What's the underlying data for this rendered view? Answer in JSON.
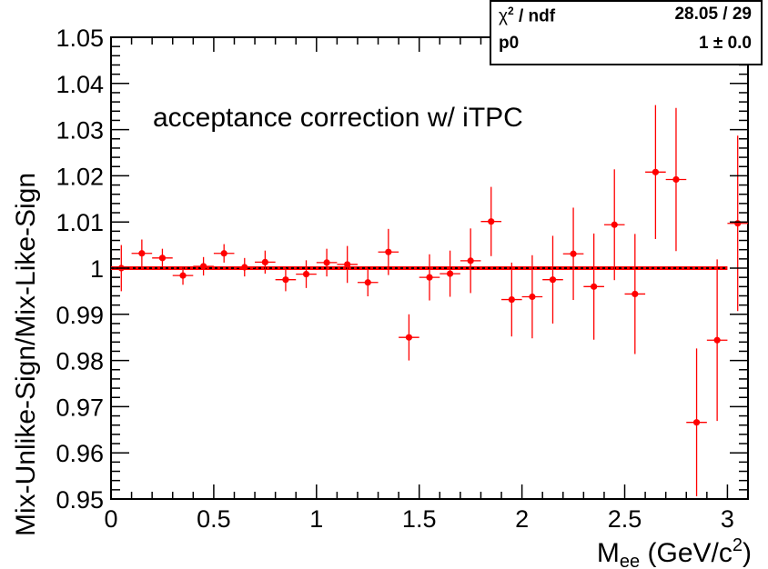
{
  "chart_data": {
    "type": "scatter",
    "title": "",
    "annotation": "acceptance correction w/ iTPC",
    "xlabel_main": "M",
    "xlabel_sub": "ee",
    "xlabel_rest": " (GeV/c",
    "xlabel_sup": "2",
    "xlabel_close": ")",
    "ylabel": "Mix-Unlike-Sign/Mix-Like-Sign",
    "xlim": [
      0,
      3.1
    ],
    "ylim": [
      0.95,
      1.05
    ],
    "x_ticks": [
      "0",
      "0.5",
      "1",
      "1.5",
      "2",
      "2.5",
      "3"
    ],
    "y_ticks": [
      "0.95",
      "0.96",
      "0.97",
      "0.98",
      "0.99",
      "1",
      "1.01",
      "1.02",
      "1.03",
      "1.04",
      "1.05"
    ],
    "grid": false,
    "marker_color": "#ff0000",
    "fit_line": {
      "y": 1.0,
      "x_range": [
        0,
        3
      ],
      "color": "#ff0000",
      "style": "solid"
    },
    "reference_line": {
      "y": 1.0,
      "x_range": [
        0,
        3
      ],
      "color": "#000000",
      "style": "dotted"
    },
    "points": [
      {
        "x": 0.05,
        "y": 1.0,
        "err": 0.005,
        "xerr": 0.05
      },
      {
        "x": 0.15,
        "y": 1.0032,
        "err": 0.003,
        "xerr": 0.05
      },
      {
        "x": 0.25,
        "y": 1.0022,
        "err": 0.002,
        "xerr": 0.05
      },
      {
        "x": 0.35,
        "y": 0.9984,
        "err": 0.002,
        "xerr": 0.05
      },
      {
        "x": 0.45,
        "y": 1.0004,
        "err": 0.002,
        "xerr": 0.05
      },
      {
        "x": 0.55,
        "y": 1.0032,
        "err": 0.002,
        "xerr": 0.05
      },
      {
        "x": 0.65,
        "y": 1.0002,
        "err": 0.002,
        "xerr": 0.05
      },
      {
        "x": 0.75,
        "y": 1.0013,
        "err": 0.0025,
        "xerr": 0.05
      },
      {
        "x": 0.85,
        "y": 0.9975,
        "err": 0.0025,
        "xerr": 0.05
      },
      {
        "x": 0.95,
        "y": 0.9987,
        "err": 0.003,
        "xerr": 0.05
      },
      {
        "x": 1.05,
        "y": 1.0012,
        "err": 0.003,
        "xerr": 0.05
      },
      {
        "x": 1.15,
        "y": 1.0008,
        "err": 0.004,
        "xerr": 0.05
      },
      {
        "x": 1.25,
        "y": 0.9969,
        "err": 0.003,
        "xerr": 0.05
      },
      {
        "x": 1.35,
        "y": 1.0035,
        "err": 0.005,
        "xerr": 0.05
      },
      {
        "x": 1.45,
        "y": 0.985,
        "err": 0.005,
        "xerr": 0.05
      },
      {
        "x": 1.55,
        "y": 0.998,
        "err": 0.005,
        "xerr": 0.05
      },
      {
        "x": 1.65,
        "y": 0.9988,
        "err": 0.005,
        "xerr": 0.05
      },
      {
        "x": 1.75,
        "y": 1.0016,
        "err": 0.007,
        "xerr": 0.05
      },
      {
        "x": 1.85,
        "y": 1.0101,
        "err": 0.0075,
        "xerr": 0.05
      },
      {
        "x": 1.95,
        "y": 0.9932,
        "err": 0.008,
        "xerr": 0.05
      },
      {
        "x": 2.05,
        "y": 0.9938,
        "err": 0.009,
        "xerr": 0.05
      },
      {
        "x": 2.15,
        "y": 0.9975,
        "err": 0.0095,
        "xerr": 0.05
      },
      {
        "x": 2.25,
        "y": 1.0031,
        "err": 0.01,
        "xerr": 0.05
      },
      {
        "x": 2.35,
        "y": 0.996,
        "err": 0.0115,
        "xerr": 0.05
      },
      {
        "x": 2.45,
        "y": 1.0094,
        "err": 0.012,
        "xerr": 0.05
      },
      {
        "x": 2.55,
        "y": 0.9944,
        "err": 0.013,
        "xerr": 0.05
      },
      {
        "x": 2.65,
        "y": 1.0208,
        "err": 0.0145,
        "xerr": 0.05
      },
      {
        "x": 2.75,
        "y": 1.0192,
        "err": 0.0155,
        "xerr": 0.05
      },
      {
        "x": 2.85,
        "y": 0.9666,
        "err": 0.016,
        "xerr": 0.05
      },
      {
        "x": 2.95,
        "y": 0.9844,
        "err": 0.0175,
        "xerr": 0.05
      },
      {
        "x": 3.05,
        "y": 1.0097,
        "err": 0.019,
        "xerr": 0.05
      }
    ]
  },
  "stats_box": {
    "row1_key_symbol": "χ",
    "row1_key_sup": "2",
    "row1_key_rest": " / ndf",
    "row1_value": "28.05 / 29",
    "row2_key": "p0",
    "row2_value": "1 ± 0.0"
  }
}
